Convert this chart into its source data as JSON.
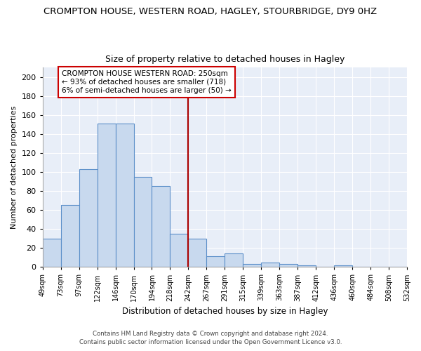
{
  "title": "CROMPTON HOUSE, WESTERN ROAD, HAGLEY, STOURBRIDGE, DY9 0HZ",
  "subtitle": "Size of property relative to detached houses in Hagley",
  "xlabel": "Distribution of detached houses by size in Hagley",
  "ylabel": "Number of detached properties",
  "bin_labels": [
    "49sqm",
    "73sqm",
    "97sqm",
    "122sqm",
    "146sqm",
    "170sqm",
    "194sqm",
    "218sqm",
    "242sqm",
    "267sqm",
    "291sqm",
    "315sqm",
    "339sqm",
    "363sqm",
    "387sqm",
    "412sqm",
    "436sqm",
    "460sqm",
    "484sqm",
    "508sqm",
    "532sqm"
  ],
  "bar_heights": [
    30,
    65,
    103,
    151,
    151,
    95,
    85,
    35,
    30,
    11,
    14,
    3,
    5,
    3,
    2,
    0,
    2,
    0,
    0,
    0
  ],
  "bar_color": "#c8d9ee",
  "bar_edge_color": "#5b8fc9",
  "vline_x_index": 8,
  "vline_color": "#aa0000",
  "annotation_text": "CROMPTON HOUSE WESTERN ROAD: 250sqm\n← 93% of detached houses are smaller (718)\n6% of semi-detached houses are larger (50) →",
  "annotation_box_color": "#ffffff",
  "annotation_box_edge": "#cc0000",
  "ylim": [
    0,
    210
  ],
  "yticks": [
    0,
    20,
    40,
    60,
    80,
    100,
    120,
    140,
    160,
    180,
    200
  ],
  "footer1": "Contains HM Land Registry data © Crown copyright and database right 2024.",
  "footer2": "Contains public sector information licensed under the Open Government Licence v3.0.",
  "bg_color": "#ffffff",
  "plot_bg_color": "#e8eef8",
  "grid_color": "#ffffff"
}
